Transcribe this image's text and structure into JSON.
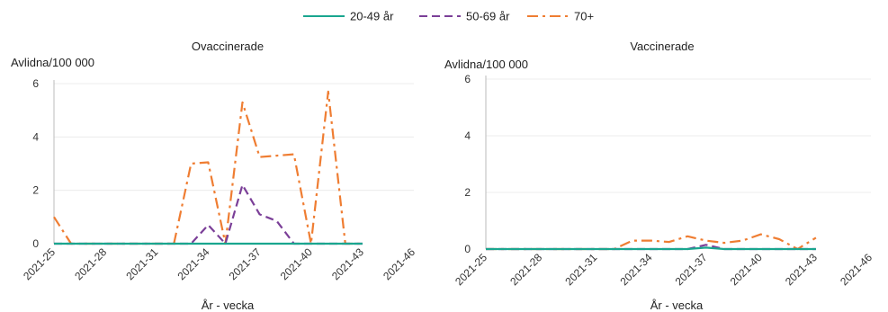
{
  "legend": [
    {
      "name": "20-49 år",
      "color": "#1aa68f",
      "dash": "solid"
    },
    {
      "name": "50-69 år",
      "color": "#7b3f98",
      "dash": "dashed"
    },
    {
      "name": "70+",
      "color": "#ef7d32",
      "dash": "dashdot"
    }
  ],
  "chart_data": [
    {
      "type": "line",
      "title": "Ovaccinerade",
      "xlabel": "År - vecka",
      "ylabel": "Avlidna/100 000",
      "ylim": [
        0,
        6
      ],
      "yticks": [
        0,
        2,
        4,
        6
      ],
      "xtick_labels": [
        "2021-25",
        "2021-28",
        "2021-31",
        "2021-34",
        "2021-37",
        "2021-40",
        "2021-43",
        "2021-46"
      ],
      "x": [
        "2021-25",
        "2021-26",
        "2021-27",
        "2021-28",
        "2021-29",
        "2021-30",
        "2021-31",
        "2021-32",
        "2021-33",
        "2021-34",
        "2021-35",
        "2021-36",
        "2021-37",
        "2021-38",
        "2021-39",
        "2021-40",
        "2021-41",
        "2021-42",
        "2021-43"
      ],
      "grid": true,
      "series": [
        {
          "name": "20-49 år",
          "values": [
            0,
            0,
            0,
            0,
            0,
            0,
            0,
            0,
            0,
            0,
            0,
            0,
            0,
            0,
            0,
            0,
            0,
            0,
            0
          ]
        },
        {
          "name": "50-69 år",
          "values": [
            0,
            0,
            0,
            0,
            0,
            0,
            0,
            0,
            0,
            0.7,
            0,
            2.2,
            1.1,
            0.85,
            0,
            0,
            0,
            0,
            0
          ]
        },
        {
          "name": "70+",
          "values": [
            1.0,
            0,
            0,
            0,
            0,
            0,
            0,
            0,
            3.0,
            3.05,
            0,
            5.3,
            3.25,
            3.3,
            3.35,
            0,
            5.7,
            0,
            0
          ]
        }
      ]
    },
    {
      "type": "line",
      "title": "Vaccinerade",
      "xlabel": "År - vecka",
      "ylabel": "Avlidna/100 000",
      "ylim": [
        0,
        6
      ],
      "yticks": [
        0,
        2,
        4,
        6
      ],
      "xtick_labels": [
        "2021-25",
        "2021-28",
        "2021-31",
        "2021-34",
        "2021-37",
        "2021-40",
        "2021-43",
        "2021-46"
      ],
      "x": [
        "2021-25",
        "2021-26",
        "2021-27",
        "2021-28",
        "2021-29",
        "2021-30",
        "2021-31",
        "2021-32",
        "2021-33",
        "2021-34",
        "2021-35",
        "2021-36",
        "2021-37",
        "2021-38",
        "2021-39",
        "2021-40",
        "2021-41",
        "2021-42",
        "2021-43"
      ],
      "grid": true,
      "series": [
        {
          "name": "20-49 år",
          "values": [
            0,
            0,
            0,
            0,
            0,
            0,
            0,
            0,
            0,
            0,
            0,
            0,
            0.05,
            0,
            0,
            0,
            0,
            0,
            0
          ]
        },
        {
          "name": "50-69 år",
          "values": [
            0,
            0,
            0,
            0,
            0,
            0,
            0,
            0,
            0,
            0,
            0,
            0,
            0.15,
            0,
            0,
            0,
            0,
            0,
            0
          ]
        },
        {
          "name": "70+",
          "values": [
            0,
            0,
            0,
            0,
            0,
            0,
            0,
            0,
            0.3,
            0.3,
            0.25,
            0.45,
            0.3,
            0.22,
            0.3,
            0.52,
            0.35,
            0,
            0.4
          ]
        }
      ]
    }
  ]
}
